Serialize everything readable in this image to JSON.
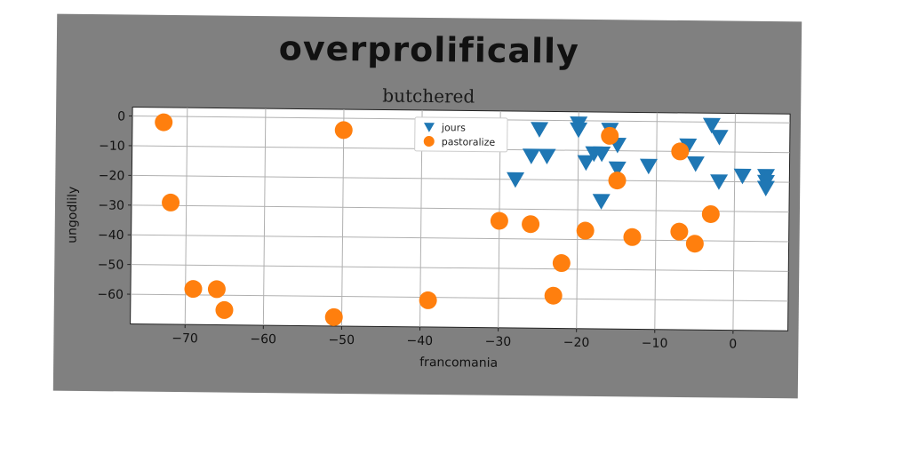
{
  "chart_data": {
    "type": "scatter",
    "title": "overprolifically",
    "subtitle": "butchered",
    "xlabel": "francomania",
    "ylabel": "ungodlily",
    "xlim": [
      -77,
      7
    ],
    "ylim": [
      -70,
      3
    ],
    "xticks": [
      -70,
      -60,
      -50,
      -40,
      -30,
      -20,
      -10,
      0
    ],
    "yticks": [
      0,
      -10,
      -20,
      -30,
      -40,
      -50,
      -60
    ],
    "grid": true,
    "legend_position": "top-center",
    "series": [
      {
        "name": "jours",
        "marker": "triangle-down",
        "color": "#1f77b4",
        "points": [
          [
            -25,
            -3
          ],
          [
            -20,
            -1
          ],
          [
            -20,
            -3
          ],
          [
            -16,
            -3
          ],
          [
            -3,
            -1
          ],
          [
            -2,
            -5
          ],
          [
            -26,
            -12
          ],
          [
            -24,
            -12
          ],
          [
            -18,
            -11
          ],
          [
            -17,
            -11
          ],
          [
            -19,
            -14
          ],
          [
            -15,
            -8
          ],
          [
            -15,
            -16
          ],
          [
            -11,
            -15
          ],
          [
            -6,
            -8
          ],
          [
            -5,
            -14
          ],
          [
            -28,
            -20
          ],
          [
            -17,
            -27
          ],
          [
            -2,
            -20
          ],
          [
            1,
            -18
          ],
          [
            4,
            -18
          ],
          [
            4,
            -20
          ],
          [
            4,
            -22
          ]
        ]
      },
      {
        "name": "pastoralize",
        "marker": "circle",
        "color": "#ff7f0e",
        "points": [
          [
            -73,
            -2
          ],
          [
            -50,
            -4
          ],
          [
            -16,
            -5
          ],
          [
            -7,
            -10
          ],
          [
            -15,
            -20
          ],
          [
            -72,
            -29
          ],
          [
            -3,
            -31
          ],
          [
            -30,
            -34
          ],
          [
            -26,
            -35
          ],
          [
            -19,
            -37
          ],
          [
            -13,
            -39
          ],
          [
            -7,
            -37
          ],
          [
            -5,
            -41
          ],
          [
            -22,
            -48
          ],
          [
            -69,
            -58
          ],
          [
            -66,
            -58
          ],
          [
            -65,
            -65
          ],
          [
            -23,
            -59
          ],
          [
            -39,
            -61
          ],
          [
            -51,
            -67
          ]
        ]
      }
    ]
  }
}
